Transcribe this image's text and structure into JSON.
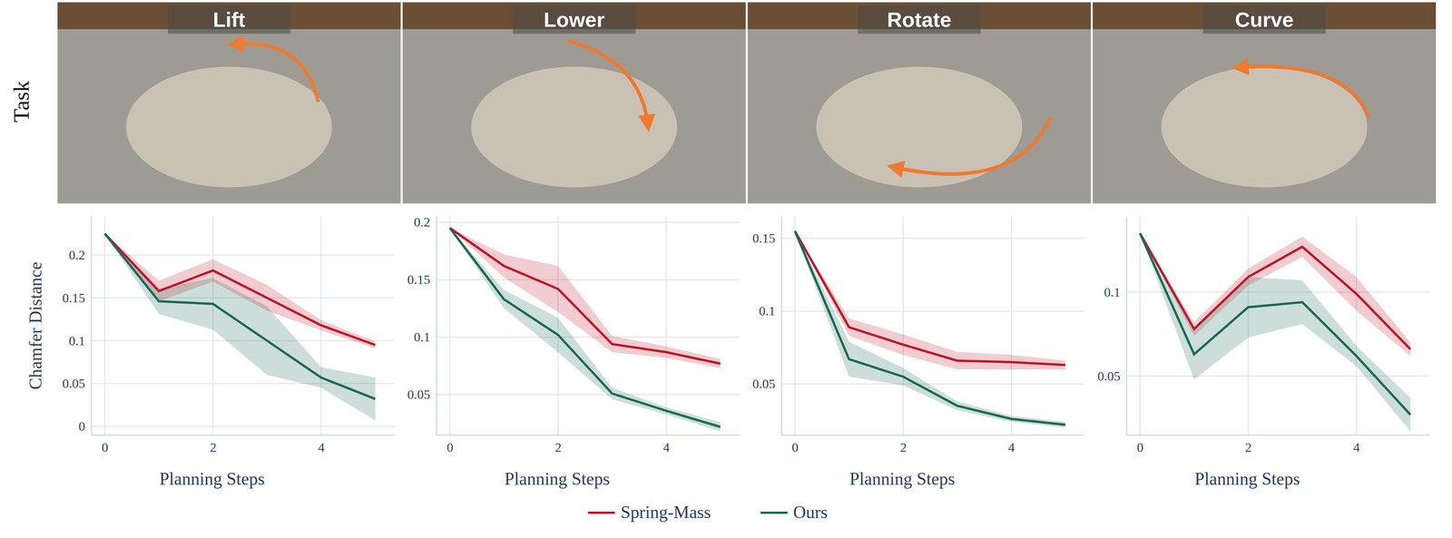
{
  "row_label": "Task",
  "chart_data": [
    {
      "type": "line",
      "title": "Lift",
      "xlabel": "Planning Steps",
      "ylabel": "Chamfer Distance",
      "x": [
        0,
        1,
        2,
        3,
        4,
        5
      ],
      "xlim": [
        -0.25,
        5.35
      ],
      "xticks": [
        0,
        2,
        4
      ],
      "ylim": [
        -0.01,
        0.245
      ],
      "yticks": [
        0,
        0.05,
        0.1,
        0.15,
        0.2
      ],
      "grid": true,
      "legend": "bottom",
      "series": [
        {
          "name": "Spring-Mass",
          "color": "#c0182a",
          "values": [
            0.225,
            0.158,
            0.182,
            0.15,
            0.118,
            0.095
          ],
          "error": [
            0,
            0.012,
            0.013,
            0.015,
            0.006,
            0.004
          ]
        },
        {
          "name": "Ours",
          "color": "#1b6b55",
          "values": [
            0.225,
            0.146,
            0.143,
            0.1,
            0.057,
            0.032
          ],
          "error": [
            0,
            0.015,
            0.03,
            0.04,
            0.012,
            0.025
          ]
        }
      ]
    },
    {
      "type": "line",
      "title": "Lower",
      "xlabel": "Planning Steps",
      "x": [
        0,
        1,
        2,
        3,
        4,
        5
      ],
      "xlim": [
        -0.25,
        5.35
      ],
      "xticks": [
        0,
        2,
        4
      ],
      "ylim": [
        0.015,
        0.205
      ],
      "yticks": [
        0.05,
        0.1,
        0.15,
        0.2
      ],
      "grid": true,
      "series": [
        {
          "color": "#c0182a",
          "values": [
            0.195,
            0.162,
            0.142,
            0.094,
            0.087,
            0.077
          ],
          "error": [
            0,
            0.01,
            0.02,
            0.007,
            0.005,
            0.004
          ]
        },
        {
          "color": "#1b6b55",
          "values": [
            0.195,
            0.133,
            0.102,
            0.051,
            0.036,
            0.022
          ],
          "error": [
            0,
            0.008,
            0.015,
            0.005,
            0.003,
            0.004
          ]
        }
      ]
    },
    {
      "type": "line",
      "title": "Rotate",
      "xlabel": "Planning Steps",
      "x": [
        0,
        1,
        2,
        3,
        4,
        5
      ],
      "xlim": [
        -0.25,
        5.35
      ],
      "xticks": [
        0,
        2,
        4
      ],
      "ylim": [
        0.015,
        0.165
      ],
      "yticks": [
        0.05,
        0.1,
        0.15
      ],
      "grid": true,
      "series": [
        {
          "color": "#c0182a",
          "values": [
            0.155,
            0.089,
            0.077,
            0.066,
            0.065,
            0.063
          ],
          "error": [
            0,
            0.006,
            0.007,
            0.006,
            0.005,
            0.003
          ]
        },
        {
          "color": "#1b6b55",
          "values": [
            0.155,
            0.067,
            0.055,
            0.035,
            0.026,
            0.022
          ],
          "error": [
            0,
            0.012,
            0.006,
            0.003,
            0.002,
            0.002
          ]
        }
      ]
    },
    {
      "type": "line",
      "title": "Curve",
      "xlabel": "Planning Steps",
      "x": [
        0,
        1,
        2,
        3,
        4,
        5
      ],
      "xlim": [
        -0.25,
        5.35
      ],
      "xticks": [
        0,
        2,
        4
      ],
      "ylim": [
        0.015,
        0.145
      ],
      "yticks": [
        0.05,
        0.1
      ],
      "grid": true,
      "series": [
        {
          "color": "#c0182a",
          "values": [
            0.135,
            0.078,
            0.109,
            0.127,
            0.099,
            0.066
          ],
          "error": [
            0,
            0.004,
            0.005,
            0.006,
            0.01,
            0.004
          ]
        },
        {
          "color": "#1b6b55",
          "values": [
            0.135,
            0.063,
            0.091,
            0.094,
            0.062,
            0.027
          ],
          "error": [
            0,
            0.015,
            0.018,
            0.013,
            0.006,
            0.01
          ]
        }
      ]
    }
  ]
}
